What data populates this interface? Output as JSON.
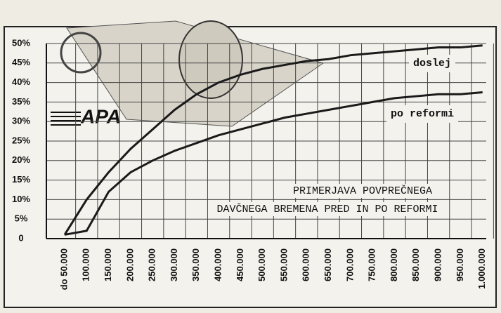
{
  "chart_data": {
    "type": "line",
    "logo": "APA",
    "annotations": [
      "PRIMERJAVA POVPREČNEGA",
      "DAVČNEGA BREMENA PRED IN PO REFORMI"
    ],
    "categories": [
      "do 50.000",
      "100.000",
      "150.000",
      "200.000",
      "250.000",
      "300.000",
      "350.000",
      "400.000",
      "450.000",
      "500.000",
      "550.000",
      "600.000",
      "650.000",
      "700.000",
      "750.000",
      "800.000",
      "850.000",
      "900.000",
      "950.000",
      "1.000.000"
    ],
    "series": [
      {
        "name": "doslej",
        "color": "#1a1a1a",
        "values": [
          1,
          10,
          17,
          23,
          28,
          33,
          37,
          40,
          42,
          43.5,
          44.5,
          45.5,
          46,
          47,
          47.5,
          48,
          48.5,
          49,
          49,
          49.5
        ]
      },
      {
        "name": "po reformi",
        "color": "#1a1a1a",
        "values": [
          1,
          2,
          12,
          17,
          20,
          22.5,
          24.5,
          26.5,
          28,
          29.5,
          31,
          32,
          33,
          34,
          35,
          36,
          36.5,
          37,
          37,
          37.5
        ]
      }
    ],
    "ylim": [
      0,
      50
    ],
    "yticks": [
      0,
      {
        "value": 5,
        "label": "5%"
      },
      {
        "value": 10,
        "label": "10%"
      },
      {
        "value": 15,
        "label": "15%"
      },
      {
        "value": 20,
        "label": "20%"
      },
      {
        "value": 25,
        "label": "25%"
      },
      {
        "value": 30,
        "label": "30%"
      },
      {
        "value": 35,
        "label": "35%"
      },
      {
        "value": 40,
        "label": "40%"
      },
      {
        "value": 45,
        "label": "45%"
      },
      {
        "value": 50,
        "label": "50%"
      }
    ],
    "grid": true
  }
}
